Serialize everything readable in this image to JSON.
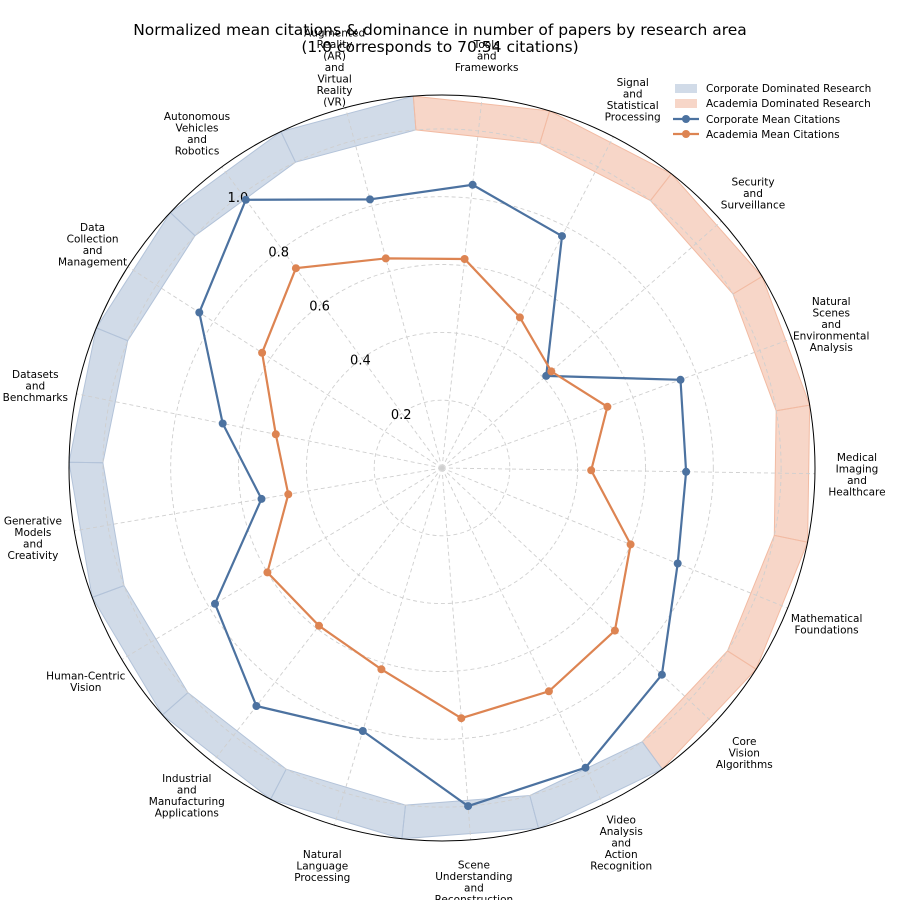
{
  "chart_data": {
    "type": "radar",
    "title": "Normalized mean citations & dominance in number of papers by research area",
    "subtitle": "(1.0 corresponds to 70.54 citations)",
    "categories": [
      "Augmented Reality (AR) and Virtual Reality (VR)",
      "Tools and Frameworks",
      "Signal and Statistical Processing",
      "Security and Surveillance",
      "Natural Scenes and Environmental Analysis",
      "Medical Imaging and Healthcare",
      "Mathematical Foundations",
      "Core Vision Algorithms",
      "Video Analysis and Action Recognition",
      "Scene Understanding and Reconstruction",
      "Natural Language Processing",
      "Industrial and Manufacturing Applications",
      "Human-Centric Vision",
      "Generative Models and Creativity",
      "Datasets and Benchmarks",
      "Data Collection and Management",
      "Autonomous Vehicles and Robotics"
    ],
    "radial_ticks": [
      "0.2",
      "0.4",
      "0.6",
      "0.8",
      "1.0"
    ],
    "rlim": [
      0,
      1.1
    ],
    "grid": true,
    "legend_position": "top-right",
    "legend": [
      "Corporate Dominated Research",
      "Academia Dominated Research",
      "Corporate Mean Citations",
      "Academia Mean Citations"
    ],
    "dominance": [
      "corporate",
      "academia",
      "academia",
      "academia",
      "academia",
      "academia",
      "academia",
      "academia",
      "corporate",
      "corporate",
      "corporate",
      "corporate",
      "corporate",
      "corporate",
      "corporate",
      "corporate",
      "corporate"
    ],
    "band_inner": 1.0,
    "band_outer": 1.1,
    "series": [
      {
        "name": "Corporate Mean Citations",
        "values": [
          0.82,
          0.84,
          0.77,
          0.41,
          0.75,
          0.72,
          0.75,
          0.89,
          0.98,
          1.0,
          0.81,
          0.89,
          0.78,
          0.54,
          0.66,
          0.85,
          0.98
        ],
        "color": "#4c72a0"
      },
      {
        "name": "Academia Mean Citations",
        "values": [
          0.64,
          0.62,
          0.5,
          0.43,
          0.52,
          0.44,
          0.6,
          0.7,
          0.73,
          0.74,
          0.62,
          0.59,
          0.6,
          0.46,
          0.5,
          0.63,
          0.73
        ],
        "color": "#dd8452"
      }
    ],
    "colors": {
      "corporate_band": "#b3c3d9",
      "academia_band": "#f2bba3"
    }
  }
}
